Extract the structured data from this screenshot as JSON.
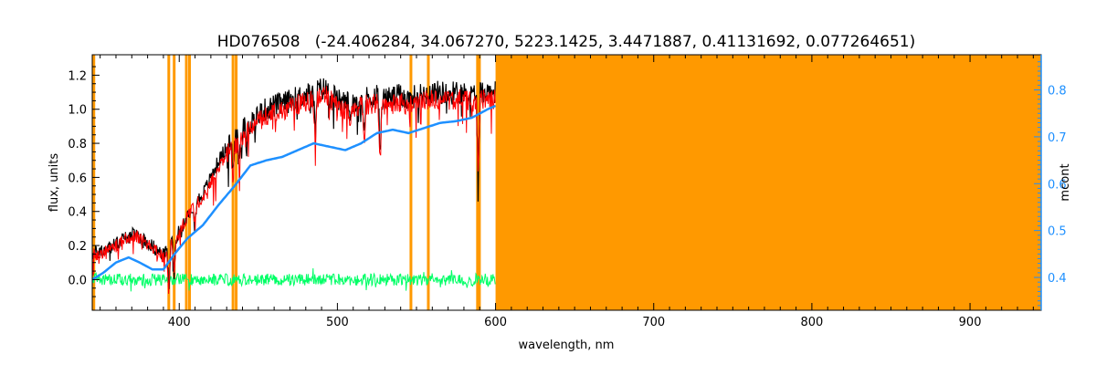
{
  "chart_data": {
    "type": "line",
    "title": "HD076508   (-24.406284, 34.067270, 5223.1425, 3.4471887, 0.41131692, 0.077264651)",
    "xlabel": "wavelength, nm",
    "ylabel": "flux, units",
    "ylabel_right": "mcont",
    "xlim": [
      345,
      945
    ],
    "ylim": [
      -0.18,
      1.32
    ],
    "ylim_right": [
      0.33,
      0.875
    ],
    "x_ticks": [
      400,
      500,
      600,
      700,
      800,
      900
    ],
    "y_ticks": [
      0.0,
      0.2,
      0.4,
      0.6,
      0.8,
      1.0,
      1.2
    ],
    "y_tick_labels": [
      "0.0",
      "0.2",
      "0.4",
      "0.6",
      "0.8",
      "1.0",
      "1.2"
    ],
    "y_ticks_right": [
      0.4,
      0.5,
      0.6,
      0.7,
      0.8
    ],
    "y_tick_labels_right": [
      "0.4",
      "0.5",
      "0.6",
      "0.7",
      "0.8"
    ],
    "grid": false,
    "colors": {
      "observed": "#000000",
      "model": "#ff0000",
      "residual": "#00ff66",
      "continuum": "#1e90ff",
      "mask": "#ff9900",
      "axis": "#000000",
      "right_axis": "#1e90ff"
    },
    "masked_lines_nm": [
      346,
      393.4,
      396.8,
      404.5,
      406.5,
      434.0,
      436.0,
      546.5,
      557.5,
      588.6,
      589.8
    ],
    "masked_region_nm": [
      600,
      945
    ],
    "series": [
      {
        "name": "observed",
        "x": [
          345,
          355,
          365,
          372,
          380,
          390,
          395,
          400,
          405,
          410,
          415,
          420,
          425,
          430,
          435,
          440,
          445,
          450,
          455,
          460,
          465,
          470,
          475,
          480,
          485,
          490,
          495,
          500,
          505,
          510,
          515,
          520,
          525,
          530,
          535,
          540,
          545,
          550,
          555,
          560,
          565,
          570,
          575,
          580,
          585,
          590,
          595,
          600
        ],
        "y": [
          0.15,
          0.18,
          0.24,
          0.27,
          0.22,
          0.14,
          0.22,
          0.28,
          0.38,
          0.45,
          0.5,
          0.6,
          0.7,
          0.78,
          0.82,
          0.88,
          0.92,
          0.97,
          1.0,
          1.02,
          1.03,
          1.05,
          1.07,
          1.08,
          1.1,
          1.12,
          1.12,
          1.05,
          1.04,
          1.05,
          1.06,
          1.07,
          1.08,
          1.06,
          1.07,
          1.08,
          1.06,
          1.08,
          1.09,
          1.1,
          1.1,
          1.09,
          1.1,
          1.1,
          1.08,
          1.1,
          1.1,
          1.1
        ]
      },
      {
        "name": "model",
        "x": [
          345,
          355,
          365,
          372,
          380,
          390,
          395,
          400,
          405,
          410,
          415,
          420,
          425,
          430,
          435,
          440,
          445,
          450,
          455,
          460,
          465,
          470,
          475,
          480,
          485,
          490,
          495,
          500,
          505,
          510,
          515,
          520,
          525,
          530,
          535,
          540,
          545,
          550,
          555,
          560,
          565,
          570,
          575,
          580,
          585,
          590,
          595,
          600
        ],
        "y": [
          0.14,
          0.17,
          0.23,
          0.26,
          0.21,
          0.13,
          0.21,
          0.27,
          0.37,
          0.44,
          0.48,
          0.57,
          0.66,
          0.74,
          0.78,
          0.84,
          0.88,
          0.93,
          0.96,
          0.98,
          0.99,
          1.01,
          1.03,
          1.04,
          1.06,
          1.08,
          1.08,
          1.01,
          1.0,
          1.01,
          1.02,
          1.03,
          1.04,
          1.02,
          1.03,
          1.04,
          1.02,
          1.04,
          1.05,
          1.06,
          1.06,
          1.05,
          1.06,
          1.06,
          1.04,
          1.06,
          1.06,
          1.06
        ]
      },
      {
        "name": "continuum",
        "x": [
          345,
          352,
          360,
          368,
          375,
          383,
          390,
          397,
          405,
          415,
          425,
          435,
          445,
          455,
          465,
          475,
          485,
          495,
          505,
          515,
          525,
          535,
          545,
          555,
          565,
          575,
          585,
          595,
          600
        ],
        "y": [
          0.0,
          0.04,
          0.1,
          0.13,
          0.1,
          0.06,
          0.06,
          0.15,
          0.24,
          0.32,
          0.44,
          0.55,
          0.67,
          0.7,
          0.72,
          0.76,
          0.8,
          0.78,
          0.76,
          0.8,
          0.86,
          0.88,
          0.86,
          0.89,
          0.92,
          0.93,
          0.95,
          1.0,
          1.02
        ]
      },
      {
        "name": "residual",
        "x": [
          345,
          600
        ],
        "y": [
          0.0,
          0.0
        ]
      }
    ]
  }
}
